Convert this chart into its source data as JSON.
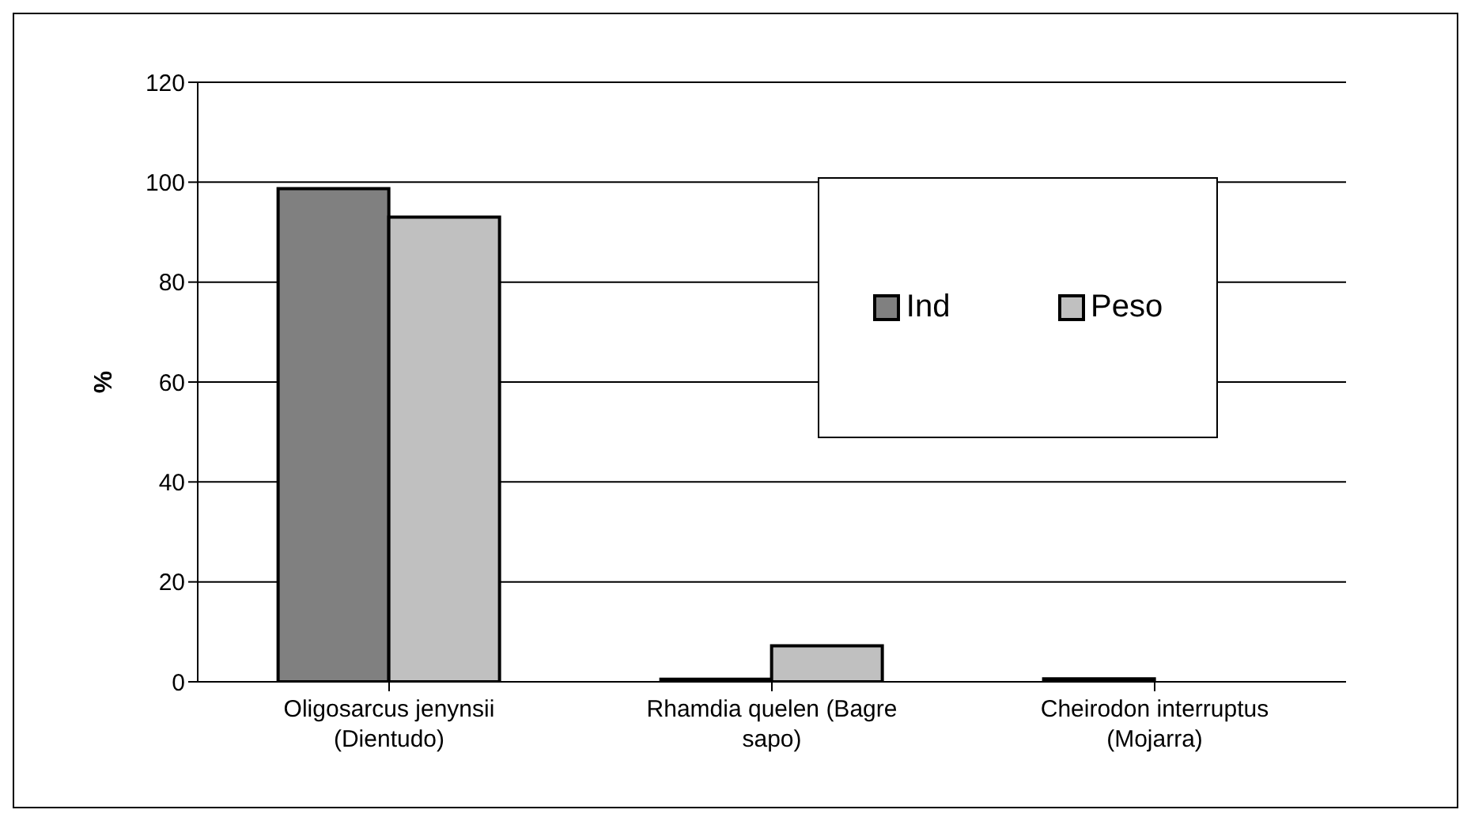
{
  "chart_data": {
    "type": "bar",
    "ylabel": "%",
    "categories": [
      "Oligosarcus jenynsii (Dientudo)",
      "Rhamdia quelen (Bagre sapo)",
      "Cheirodon interruptus (Mojarra)"
    ],
    "series": [
      {
        "name": "Ind",
        "color": "#808080",
        "values": [
          98.7,
          0.5,
          0.6
        ]
      },
      {
        "name": "Peso",
        "color": "#c0c0c0",
        "values": [
          93,
          7.2,
          0
        ]
      }
    ],
    "ylim": [
      0,
      120
    ],
    "yticks": [
      0,
      20,
      40,
      60,
      80,
      100,
      120
    ],
    "grid": "y",
    "legend": "top right"
  }
}
